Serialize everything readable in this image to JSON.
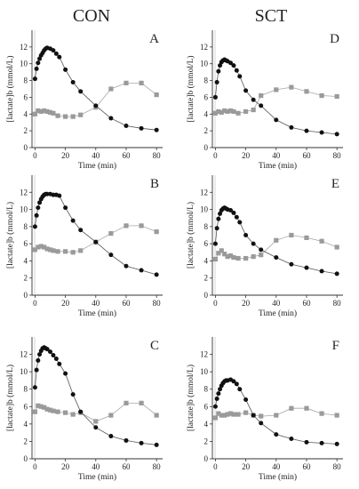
{
  "figure": {
    "column_titles": [
      "CON",
      "SCT"
    ]
  },
  "chart_data": [
    {
      "type": "scatter",
      "panel": "A",
      "xlabel": "Time (min)",
      "ylabel": "[lactate]b (mmol/L)",
      "xlim": [
        -2,
        84
      ],
      "ylim": [
        0,
        14
      ],
      "xticks": [
        0,
        20,
        40,
        60,
        80
      ],
      "yticks": [
        0,
        2,
        4,
        6,
        8,
        10,
        12
      ],
      "series": [
        {
          "marker": "circle",
          "color": "#111111",
          "x": [
            0,
            1,
            2,
            3,
            4,
            5,
            6,
            7,
            8,
            10,
            12,
            14,
            16,
            20,
            25,
            30,
            40,
            50,
            60,
            70,
            80
          ],
          "y": [
            8.2,
            9.4,
            10.1,
            10.6,
            11.0,
            11.3,
            11.6,
            11.8,
            11.9,
            11.8,
            11.6,
            11.2,
            10.8,
            9.3,
            7.8,
            6.7,
            5.0,
            3.5,
            2.6,
            2.3,
            2.1
          ]
        },
        {
          "marker": "square",
          "color": "#9a9a9a",
          "x": [
            0,
            2,
            4,
            6,
            8,
            10,
            12,
            15,
            20,
            25,
            30,
            40,
            50,
            60,
            70,
            80
          ],
          "y": [
            4.0,
            4.4,
            4.3,
            4.4,
            4.3,
            4.2,
            4.1,
            3.8,
            3.7,
            3.7,
            3.9,
            4.8,
            7.0,
            7.7,
            7.7,
            6.3
          ]
        }
      ]
    },
    {
      "type": "scatter",
      "panel": "D",
      "xlabel": "Time (min)",
      "ylabel": "[lactate]b (mmol/L)",
      "xlim": [
        -2,
        84
      ],
      "ylim": [
        0,
        14
      ],
      "xticks": [
        0,
        20,
        40,
        60,
        80
      ],
      "yticks": [
        0,
        2,
        4,
        6,
        8,
        10,
        12
      ],
      "series": [
        {
          "marker": "circle",
          "color": "#111111",
          "x": [
            0,
            1,
            2,
            3,
            4,
            5,
            6,
            7,
            8,
            10,
            12,
            14,
            16,
            20,
            25,
            30,
            40,
            50,
            60,
            70,
            80
          ],
          "y": [
            6.0,
            7.8,
            9.1,
            9.8,
            10.2,
            10.4,
            10.5,
            10.4,
            10.3,
            10.1,
            9.8,
            9.2,
            8.5,
            6.8,
            5.7,
            5.0,
            3.3,
            2.4,
            2.0,
            1.8,
            1.6
          ]
        },
        {
          "marker": "square",
          "color": "#9a9a9a",
          "x": [
            0,
            2,
            4,
            6,
            8,
            10,
            12,
            15,
            20,
            25,
            30,
            40,
            50,
            60,
            70,
            80
          ],
          "y": [
            4.1,
            4.3,
            4.2,
            4.4,
            4.3,
            4.4,
            4.3,
            4.1,
            4.3,
            4.5,
            6.2,
            6.9,
            7.2,
            6.7,
            6.2,
            6.1
          ]
        }
      ]
    },
    {
      "type": "scatter",
      "panel": "B",
      "xlabel": "Time (min)",
      "ylabel": "[lactate]b (mmol/L)",
      "xlim": [
        -2,
        84
      ],
      "ylim": [
        0,
        14
      ],
      "xticks": [
        0,
        20,
        40,
        60,
        80
      ],
      "yticks": [
        0,
        2,
        4,
        6,
        8,
        10,
        12
      ],
      "series": [
        {
          "marker": "circle",
          "color": "#111111",
          "x": [
            0,
            1,
            2,
            3,
            4,
            5,
            6,
            7,
            8,
            10,
            12,
            14,
            16,
            20,
            25,
            30,
            40,
            50,
            60,
            70,
            80
          ],
          "y": [
            8.0,
            9.3,
            10.2,
            10.8,
            11.2,
            11.5,
            11.7,
            11.8,
            11.8,
            11.8,
            11.7,
            11.7,
            11.6,
            10.2,
            8.7,
            7.6,
            6.2,
            4.7,
            3.4,
            2.9,
            2.4
          ]
        },
        {
          "marker": "square",
          "color": "#9a9a9a",
          "x": [
            0,
            2,
            4,
            6,
            8,
            10,
            12,
            15,
            20,
            25,
            30,
            40,
            50,
            60,
            70,
            80
          ],
          "y": [
            5.3,
            5.6,
            5.7,
            5.6,
            5.4,
            5.3,
            5.2,
            5.1,
            5.1,
            5.0,
            5.2,
            6.2,
            7.2,
            8.1,
            8.1,
            7.4
          ]
        }
      ]
    },
    {
      "type": "scatter",
      "panel": "E",
      "xlabel": "Time (min)",
      "ylabel": "[lactate]b (mmol/L)",
      "xlim": [
        -2,
        84
      ],
      "ylim": [
        0,
        14
      ],
      "xticks": [
        0,
        20,
        40,
        60,
        80
      ],
      "yticks": [
        0,
        2,
        4,
        6,
        8,
        10,
        12
      ],
      "series": [
        {
          "marker": "circle",
          "color": "#111111",
          "x": [
            0,
            1,
            2,
            3,
            4,
            5,
            6,
            7,
            8,
            10,
            12,
            14,
            16,
            20,
            25,
            30,
            40,
            50,
            60,
            70,
            80
          ],
          "y": [
            6.0,
            7.8,
            8.9,
            9.5,
            9.9,
            10.1,
            10.2,
            10.1,
            10.0,
            9.9,
            9.6,
            9.1,
            8.5,
            7.0,
            6.0,
            5.3,
            4.4,
            3.6,
            3.2,
            2.8,
            2.5
          ]
        },
        {
          "marker": "square",
          "color": "#9a9a9a",
          "x": [
            0,
            2,
            4,
            6,
            8,
            10,
            12,
            15,
            20,
            25,
            30,
            40,
            50,
            60,
            70,
            80
          ],
          "y": [
            4.2,
            4.9,
            5.2,
            4.8,
            4.5,
            4.6,
            4.4,
            4.3,
            4.3,
            4.5,
            4.7,
            6.4,
            7.0,
            6.7,
            6.3,
            5.6
          ]
        }
      ]
    },
    {
      "type": "scatter",
      "panel": "C",
      "xlabel": "Time (min)",
      "ylabel": "[lactate]b (mmol/L)",
      "xlim": [
        -2,
        84
      ],
      "ylim": [
        0,
        14
      ],
      "xticks": [
        0,
        20,
        40,
        60,
        80
      ],
      "yticks": [
        0,
        2,
        4,
        6,
        8,
        10,
        12
      ],
      "series": [
        {
          "marker": "circle",
          "color": "#111111",
          "x": [
            0,
            1,
            2,
            3,
            4,
            5,
            6,
            7,
            8,
            10,
            12,
            14,
            16,
            20,
            25,
            30,
            40,
            50,
            60,
            70,
            80
          ],
          "y": [
            8.2,
            10.2,
            11.3,
            12.0,
            12.4,
            12.7,
            12.8,
            12.7,
            12.6,
            12.3,
            11.9,
            11.5,
            10.9,
            9.8,
            7.4,
            5.4,
            3.6,
            2.6,
            2.1,
            1.8,
            1.6
          ]
        },
        {
          "marker": "square",
          "color": "#9a9a9a",
          "x": [
            0,
            2,
            4,
            6,
            8,
            10,
            12,
            15,
            20,
            25,
            30,
            40,
            50,
            60,
            70,
            80
          ],
          "y": [
            5.4,
            6.1,
            6.0,
            5.9,
            5.7,
            5.6,
            5.5,
            5.4,
            5.3,
            5.1,
            5.3,
            4.3,
            5.0,
            6.4,
            6.4,
            5.0
          ]
        }
      ]
    },
    {
      "type": "scatter",
      "panel": "F",
      "xlabel": "Time (min)",
      "ylabel": "[lactate]b (mmol/L)",
      "xlim": [
        -2,
        84
      ],
      "ylim": [
        0,
        14
      ],
      "xticks": [
        0,
        20,
        40,
        60,
        80
      ],
      "yticks": [
        0,
        2,
        4,
        6,
        8,
        10,
        12
      ],
      "series": [
        {
          "marker": "circle",
          "color": "#111111",
          "x": [
            0,
            1,
            2,
            3,
            4,
            5,
            6,
            7,
            8,
            10,
            12,
            14,
            16,
            20,
            25,
            30,
            40,
            50,
            60,
            70,
            80
          ],
          "y": [
            6.0,
            6.9,
            7.5,
            8.0,
            8.4,
            8.7,
            8.9,
            9.0,
            9.0,
            9.1,
            8.9,
            8.6,
            8.0,
            6.8,
            5.0,
            4.1,
            2.8,
            2.3,
            1.9,
            1.8,
            1.7
          ]
        },
        {
          "marker": "square",
          "color": "#9a9a9a",
          "x": [
            0,
            2,
            4,
            6,
            8,
            10,
            12,
            15,
            20,
            25,
            30,
            40,
            50,
            60,
            70,
            80
          ],
          "y": [
            4.7,
            5.2,
            5.0,
            5.0,
            5.1,
            5.2,
            5.1,
            5.1,
            5.3,
            5.0,
            4.9,
            5.0,
            5.8,
            5.8,
            5.2,
            5.0
          ]
        }
      ]
    }
  ]
}
